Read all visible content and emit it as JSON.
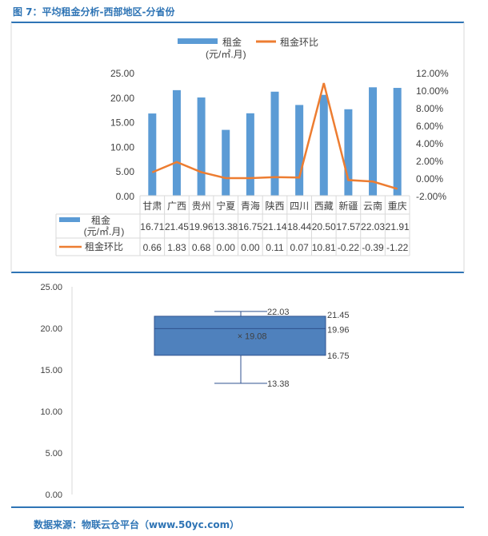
{
  "title": "图 7：平均租金分析-西部地区-分省份",
  "source": "数据来源：物联云仓平台（www.50yc.com）",
  "colors": {
    "bar": "#5b9bd5",
    "line": "#ed7d31",
    "box": "#4f81bd",
    "rule": "#2e74b5"
  },
  "chart_data": [
    {
      "type": "bar+line",
      "title": "",
      "categories": [
        "甘肃",
        "广西",
        "贵州",
        "宁夏",
        "青海",
        "陕西",
        "四川",
        "西藏",
        "新疆",
        "云南",
        "重庆"
      ],
      "series": [
        {
          "name": "租金",
          "unit": "(元/㎡.月)",
          "axis": "left",
          "type": "bar",
          "values": [
            16.71,
            21.45,
            19.96,
            13.38,
            16.75,
            21.14,
            18.44,
            20.5,
            17.57,
            22.03,
            21.91
          ],
          "labels": [
            "16.71",
            "21.45",
            "19.96",
            "13.38",
            "16.75",
            "21.14",
            "18.44",
            "20.50",
            "17.57",
            "22.03",
            "21.91"
          ]
        },
        {
          "name": "租金环比",
          "axis": "right",
          "type": "line",
          "values": [
            0.66,
            1.83,
            0.68,
            0.0,
            0.0,
            0.11,
            0.07,
            10.81,
            -0.22,
            -0.39,
            -1.22
          ],
          "labels": [
            "0.66",
            "1.83",
            "0.68",
            "0.00",
            "0.00",
            "0.11",
            "0.07",
            "10.81",
            "-0.22",
            "-0.39",
            "-1.22"
          ]
        }
      ],
      "yleft": {
        "ticks": [
          "0.00",
          "5.00",
          "10.00",
          "15.00",
          "20.00",
          "25.00"
        ],
        "range": [
          0,
          25
        ]
      },
      "yright": {
        "ticks": [
          "-2.00%",
          "0.00%",
          "2.00%",
          "4.00%",
          "6.00%",
          "8.00%",
          "10.00%",
          "12.00%"
        ],
        "range": [
          -2,
          12
        ]
      },
      "legend": "top",
      "data_table": true
    },
    {
      "type": "box",
      "min": 13.38,
      "q1": 16.75,
      "median": 19.96,
      "mean": 19.08,
      "q3": 21.45,
      "max": 22.03,
      "labels": {
        "max": "22.03",
        "q3": "21.45",
        "median": "19.96",
        "mean": "19.08",
        "q1": "16.75",
        "min": "13.38"
      },
      "ylim": [
        0,
        25
      ],
      "yticks": [
        "0.00",
        "5.00",
        "10.00",
        "15.00",
        "20.00",
        "25.00"
      ]
    }
  ]
}
